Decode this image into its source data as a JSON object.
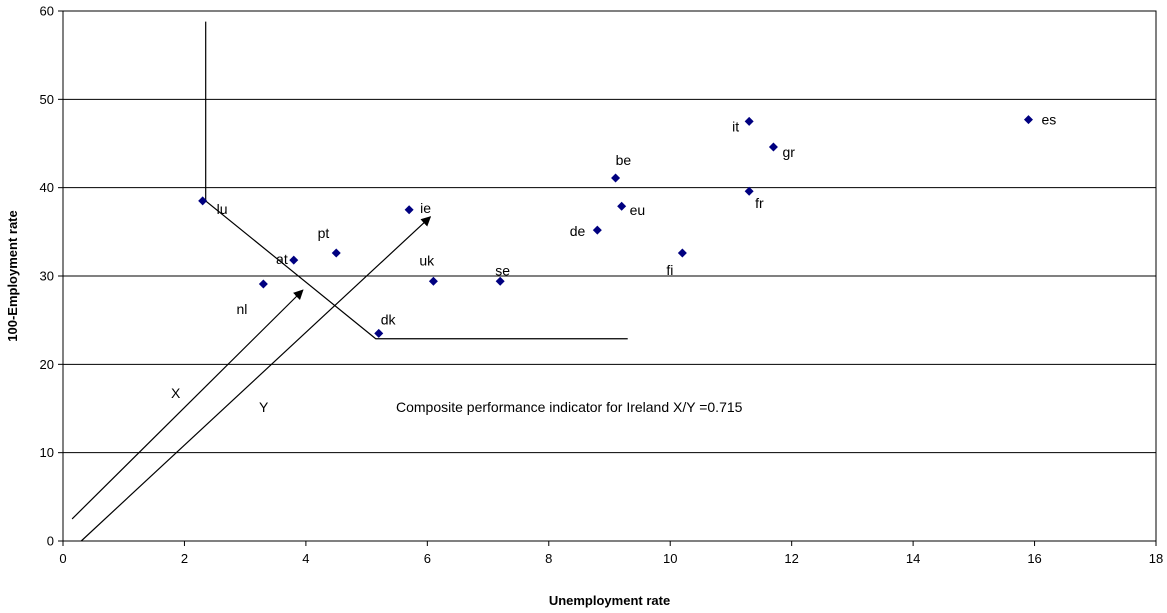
{
  "chart_data": {
    "type": "scatter",
    "xlabel": "Unemployment rate",
    "ylabel": "100-Employment rate",
    "xlim": [
      0,
      18
    ],
    "ylim": [
      0,
      60
    ],
    "x_ticks": [
      "0",
      "2",
      "4",
      "6",
      "8",
      "10",
      "12",
      "14",
      "16",
      "18"
    ],
    "y_ticks": [
      "0",
      "10",
      "20",
      "30",
      "40",
      "50",
      "60"
    ],
    "grid": "horizontal",
    "marker": "diamond",
    "marker_color": "#000080",
    "points": [
      {
        "label": "lu",
        "x": 2.3,
        "y": 38.5
      },
      {
        "label": "nl",
        "x": 3.3,
        "y": 29.1
      },
      {
        "label": "at",
        "x": 3.8,
        "y": 31.8
      },
      {
        "label": "pt",
        "x": 4.5,
        "y": 32.6
      },
      {
        "label": "dk",
        "x": 5.2,
        "y": 23.5
      },
      {
        "label": "ie",
        "x": 5.7,
        "y": 37.5
      },
      {
        "label": "uk",
        "x": 6.1,
        "y": 29.4
      },
      {
        "label": "se",
        "x": 7.2,
        "y": 29.4
      },
      {
        "label": "de",
        "x": 8.8,
        "y": 35.2
      },
      {
        "label": "be",
        "x": 9.1,
        "y": 41.1
      },
      {
        "label": "eu",
        "x": 9.2,
        "y": 37.9
      },
      {
        "label": "fi",
        "x": 10.2,
        "y": 32.6
      },
      {
        "label": "fr",
        "x": 11.3,
        "y": 39.6
      },
      {
        "label": "it",
        "x": 11.3,
        "y": 47.5
      },
      {
        "label": "gr",
        "x": 11.7,
        "y": 44.6
      },
      {
        "label": "es",
        "x": 15.9,
        "y": 47.7
      }
    ],
    "annotations": {
      "text": "Composite performance indicator for Ireland  X/Y =0.715",
      "x_arrow_label": "X",
      "y_arrow_label": "Y",
      "frontier": [
        [
          2.35,
          58.8
        ],
        [
          2.35,
          38.5
        ],
        [
          5.15,
          22.9
        ],
        [
          9.3,
          22.9
        ]
      ],
      "arrow_x": {
        "from": [
          0.15,
          2.5
        ],
        "to": [
          3.95,
          28.4
        ]
      },
      "arrow_y": {
        "from": [
          0.3,
          0.0
        ],
        "to": [
          6.05,
          36.7
        ]
      }
    }
  }
}
